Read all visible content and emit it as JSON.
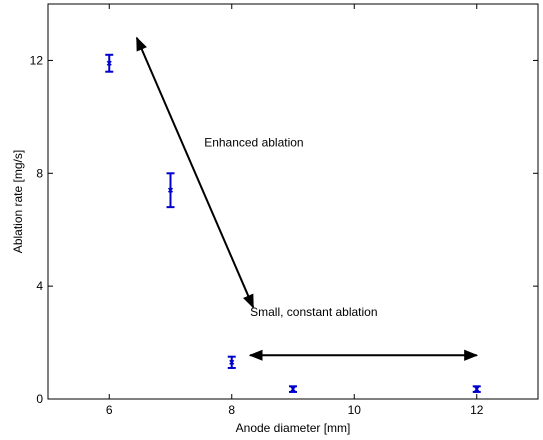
{
  "chart_data": {
    "type": "scatter",
    "xlabel": "Anode diameter [mm]",
    "ylabel": "Ablation rate [mg/s]",
    "xlim": [
      5,
      13
    ],
    "ylim": [
      0,
      14
    ],
    "xticks": [
      6,
      8,
      10,
      12
    ],
    "yticks": [
      0,
      4,
      8,
      12
    ],
    "grid": false,
    "series": [
      {
        "color": "#0000cc",
        "marker": "x",
        "points": [
          {
            "x": 6,
            "y": 11.9,
            "err_low": 11.6,
            "err_high": 12.2
          },
          {
            "x": 7,
            "y": 7.4,
            "err_low": 6.8,
            "err_high": 8.0
          },
          {
            "x": 8,
            "y": 1.3,
            "err_low": 1.1,
            "err_high": 1.5
          },
          {
            "x": 9,
            "y": 0.35,
            "err_low": 0.25,
            "err_high": 0.45
          },
          {
            "x": 12,
            "y": 0.35,
            "err_low": 0.25,
            "err_high": 0.45
          }
        ]
      }
    ],
    "annotations": [
      {
        "text": "Enhanced ablation",
        "x": 7.55,
        "y": 8.95
      },
      {
        "text": "Small, constant ablation",
        "x": 8.3,
        "y": 2.95
      }
    ],
    "arrows": [
      {
        "x1": 6.45,
        "y1": 12.8,
        "x2": 8.35,
        "y2": 3.25
      },
      {
        "x1": 8.3,
        "y1": 1.55,
        "x2": 12.0,
        "y2": 1.55
      }
    ]
  }
}
